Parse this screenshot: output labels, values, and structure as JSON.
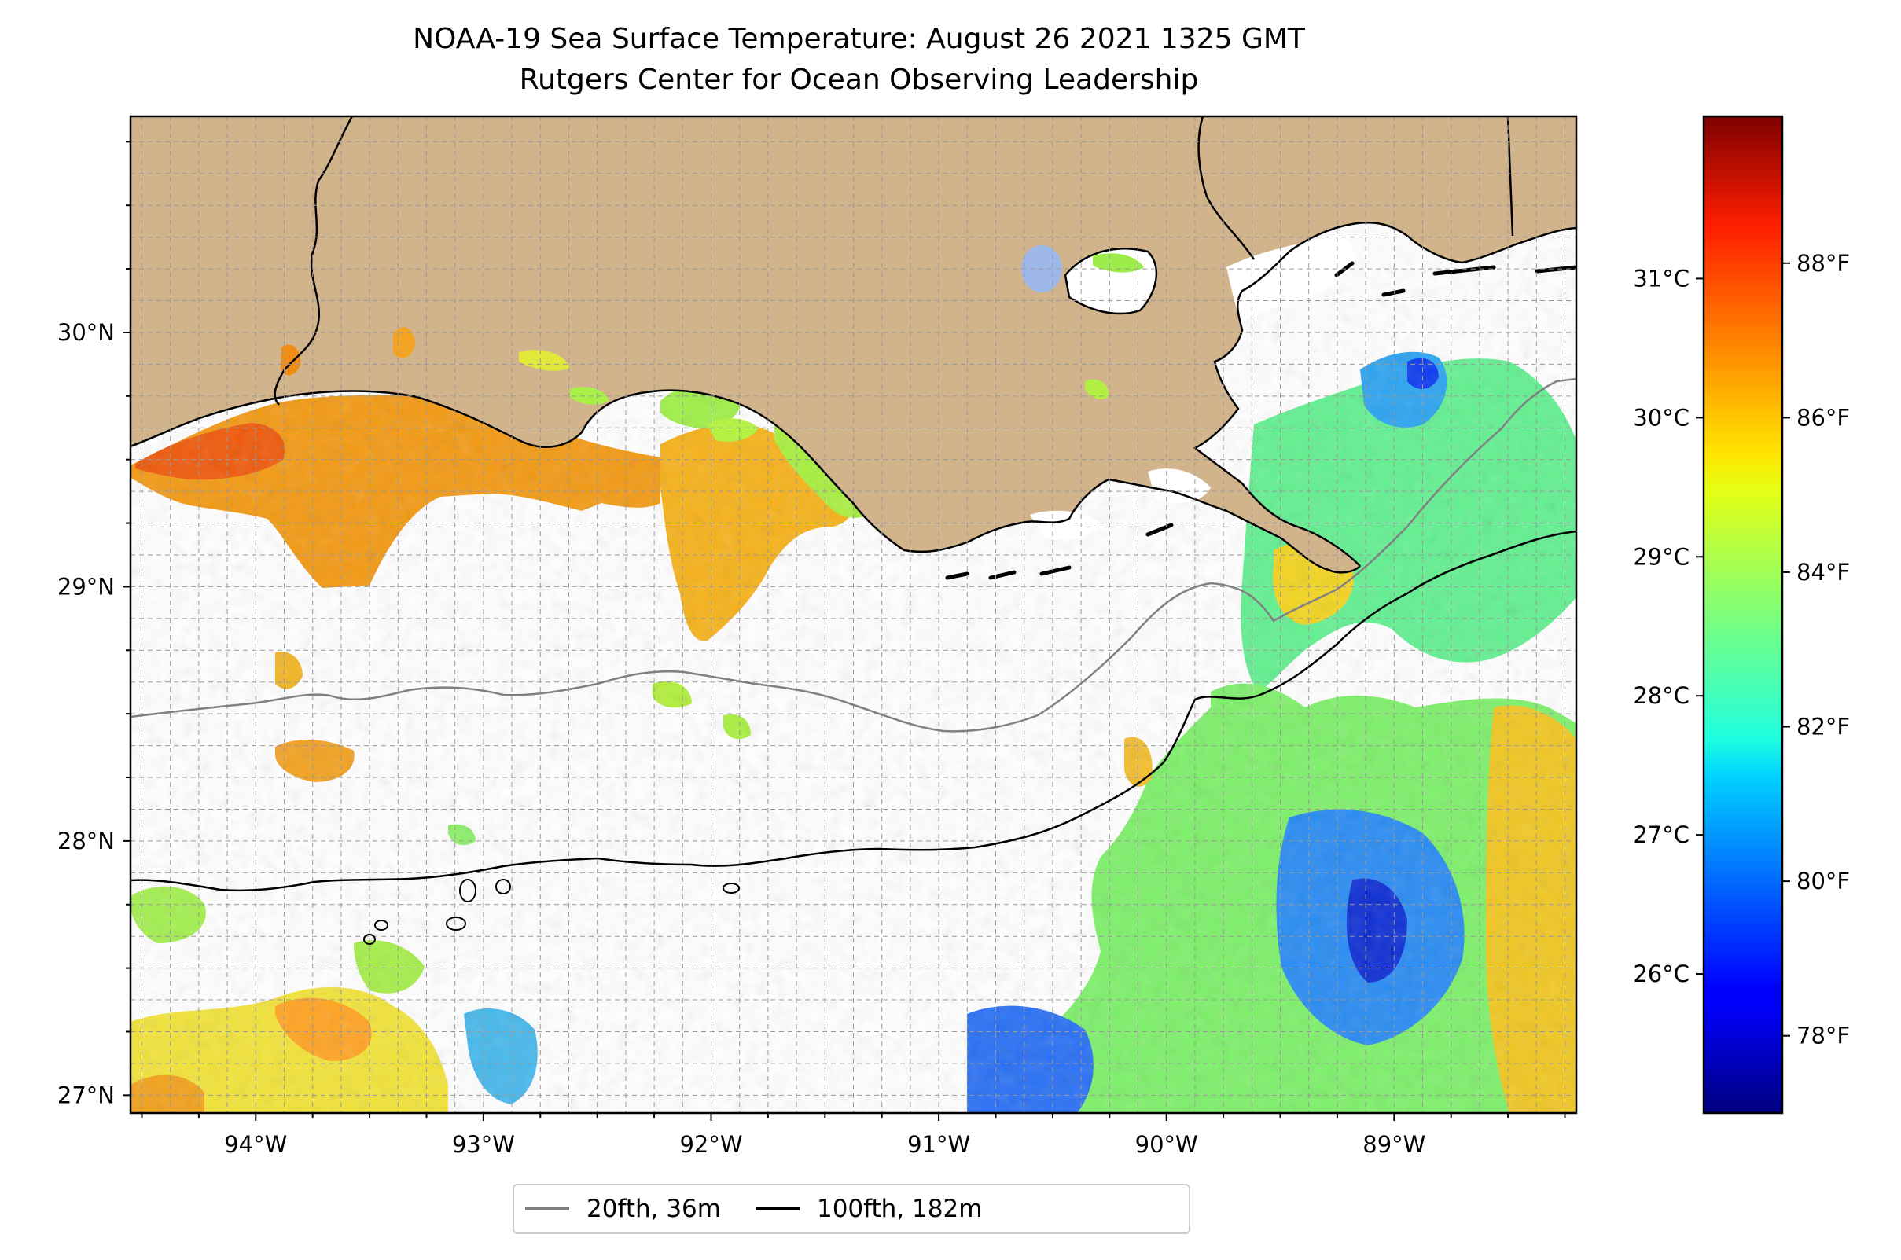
{
  "title": {
    "line1": "NOAA-19 Sea Surface Temperature: August 26 2021 1325 GMT",
    "line2": "Rutgers Center for Ocean Observing Leadership"
  },
  "map": {
    "lon_range": [
      -94.55,
      -88.2
    ],
    "lat_range": [
      26.93,
      30.85
    ],
    "lon_ticks": [
      {
        "value": -94,
        "label": "94°W"
      },
      {
        "value": -93,
        "label": "93°W"
      },
      {
        "value": -92,
        "label": "92°W"
      },
      {
        "value": -91,
        "label": "91°W"
      },
      {
        "value": -90,
        "label": "90°W"
      },
      {
        "value": -89,
        "label": "89°W"
      }
    ],
    "lat_ticks": [
      {
        "value": 30,
        "label": "30°N"
      },
      {
        "value": 29,
        "label": "29°N"
      },
      {
        "value": 28,
        "label": "28°N"
      },
      {
        "value": 27,
        "label": "27°N"
      }
    ],
    "gridlines": true,
    "land_color": "#d2b48c",
    "lake_color": "#9db8e8",
    "coastline_color": "#000000"
  },
  "colorbar": {
    "colormap": "jet",
    "range_f": [
      77.0,
      89.9
    ],
    "celsius_ticks": [
      {
        "value": 26,
        "label": "26°C"
      },
      {
        "value": 27,
        "label": "27°C"
      },
      {
        "value": 28,
        "label": "28°C"
      },
      {
        "value": 29,
        "label": "29°C"
      },
      {
        "value": 30,
        "label": "30°C"
      },
      {
        "value": 31,
        "label": "31°C"
      }
    ],
    "fahrenheit_ticks": [
      {
        "value": 78,
        "label": "78°F"
      },
      {
        "value": 80,
        "label": "80°F"
      },
      {
        "value": 82,
        "label": "82°F"
      },
      {
        "value": 84,
        "label": "84°F"
      },
      {
        "value": 86,
        "label": "86°F"
      },
      {
        "value": 88,
        "label": "88°F"
      }
    ]
  },
  "legend": {
    "placement": "bottom-center",
    "items": [
      {
        "label": "20fth, 36m",
        "color": "#808080"
      },
      {
        "label": "100fth, 182m",
        "color": "#000000"
      }
    ]
  }
}
